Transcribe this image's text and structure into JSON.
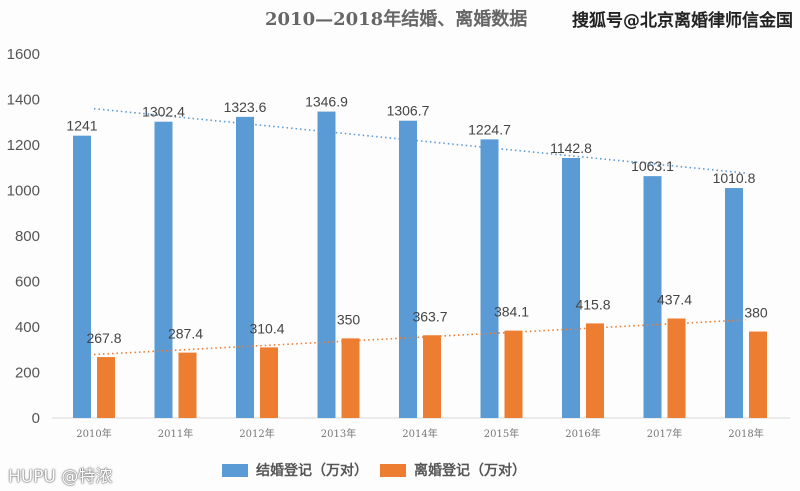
{
  "title": "2010—2018年结婚、离婚数据",
  "watermark": "搜狐号@北京离婚律师信金国",
  "footer_watermark": "HUPU @特浓",
  "chart_data": {
    "type": "bar",
    "title": "2010—2018年结婚、离婚数据",
    "categories": [
      "2010年",
      "2011年",
      "2012年",
      "2013年",
      "2014年",
      "2015年",
      "2016年",
      "2017年",
      "2018年"
    ],
    "series": [
      {
        "name": "结婚登记（万对）",
        "color": "#5b9bd5",
        "values": [
          1241,
          1302.4,
          1323.6,
          1346.9,
          1306.7,
          1224.7,
          1142.8,
          1063.1,
          1010.8
        ],
        "trendline": "linear dotted"
      },
      {
        "name": "离婚登记（万对）",
        "color": "#ed7d31",
        "values": [
          267.8,
          287.4,
          310.4,
          350,
          363.7,
          384.1,
          415.8,
          437.4,
          380
        ],
        "trendline": "linear dotted"
      }
    ],
    "yticks": [
      0,
      200,
      400,
      600,
      800,
      1000,
      1200,
      1400,
      1600
    ],
    "ylim": [
      0,
      1600
    ],
    "grid": false,
    "legend": "bottom"
  }
}
